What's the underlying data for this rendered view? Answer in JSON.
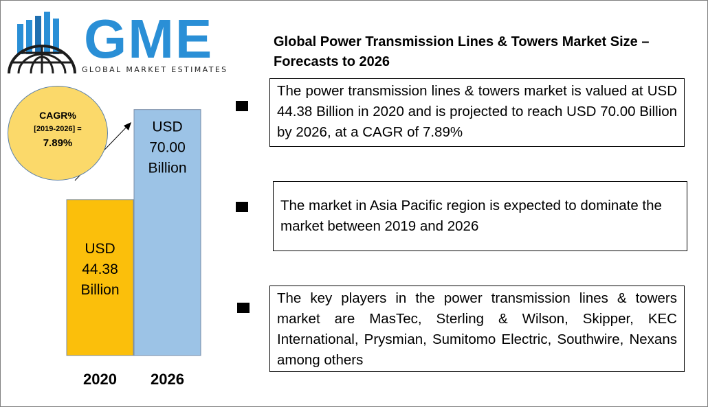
{
  "logo": {
    "title": "GME",
    "subtitle": "GLOBAL MARKET ESTIMATES",
    "colors": {
      "bars": "#2a8fd6",
      "globe": "#1d1d1d"
    }
  },
  "heading": "Global Power Transmission Lines & Towers Market Size – Forecasts to 2026",
  "cagr": {
    "label": "CAGR%",
    "period": "[2019-2026] =",
    "value": "7.89%"
  },
  "chart_data": {
    "type": "bar",
    "categories": [
      "2020",
      "2026"
    ],
    "values": [
      44.38,
      70.0
    ],
    "value_labels": [
      "USD 44.38 Billion",
      "USD 70.00 Billion"
    ],
    "colors": [
      "#fbbf0b",
      "#9cc3e6"
    ],
    "title": "",
    "xlabel": "",
    "ylabel": "",
    "ylim": [
      0,
      84
    ]
  },
  "points": [
    {
      "text": "The power transmission lines & towers market is valued at USD 44.38 Billion in 2020 and is projected to reach USD 70.00 Billion by 2026, at a CAGR of 7.89%"
    },
    {
      "text": "The market in Asia Pacific region is expected to dominate the market between 2019 and 2026"
    },
    {
      "text": "The key players in the power transmission lines & towers market are MasTec, Sterling & Wilson, Skipper, KEC International, Prysmian, Sumitomo Electric, Southwire, Nexans among others"
    }
  ]
}
